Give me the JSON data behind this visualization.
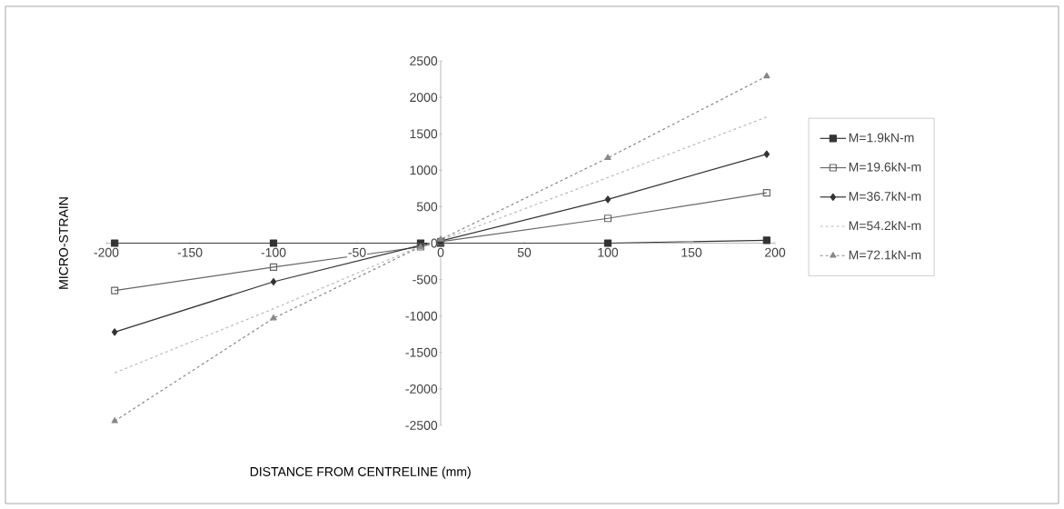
{
  "chart_data": {
    "type": "line",
    "xlabel": "DISTANCE FROM CENTRELINE (mm)",
    "ylabel": "MICRO-STRAIN",
    "x": [
      -195,
      -100,
      -12,
      0,
      100,
      195
    ],
    "series": [
      {
        "name": "M=1.9kN-m",
        "color": "#333333",
        "marker": "square",
        "line_style": "solid",
        "values": [
          0,
          0,
          0,
          0,
          0,
          40
        ]
      },
      {
        "name": "M=19.6kN-m",
        "color": "#666666",
        "marker": "square-open",
        "line_style": "solid",
        "values": [
          -650,
          -330,
          -50,
          20,
          340,
          690
        ]
      },
      {
        "name": "M=36.7kN-m",
        "color": "#333333",
        "marker": "diamond",
        "line_style": "solid",
        "values": [
          -1220,
          -530,
          -30,
          30,
          600,
          1220
        ]
      },
      {
        "name": "M=54.2kN-m",
        "color": "#bbbbbb",
        "marker": "none",
        "line_style": "dashed",
        "values": [
          -1780,
          -900,
          -40,
          40,
          900,
          1730
        ]
      },
      {
        "name": "M=72.1kN-m",
        "color": "#888888",
        "marker": "triangle",
        "line_style": "dashed",
        "values": [
          -2440,
          -1030,
          -50,
          50,
          1170,
          2290
        ]
      }
    ],
    "xlim": [
      -200,
      200
    ],
    "ylim": [
      -2500,
      2500
    ],
    "xticks": [
      -200,
      -150,
      -100,
      -50,
      0,
      50,
      100,
      150,
      200
    ],
    "yticks": [
      -2500,
      -2000,
      -1500,
      -1000,
      -500,
      0,
      500,
      1000,
      1500,
      2000,
      2500
    ],
    "grid": false,
    "legend": "right"
  }
}
